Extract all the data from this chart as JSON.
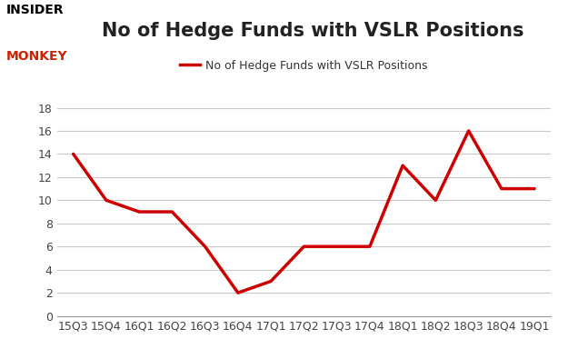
{
  "x_labels": [
    "15Q3",
    "15Q4",
    "16Q1",
    "16Q2",
    "16Q3",
    "16Q4",
    "17Q1",
    "17Q2",
    "17Q3",
    "17Q4",
    "18Q1",
    "18Q2",
    "18Q3",
    "18Q4",
    "19Q1"
  ],
  "y_values": [
    14,
    10,
    9,
    9,
    6,
    2,
    3,
    6,
    6,
    6,
    13,
    10,
    16,
    11,
    11
  ],
  "line_color": "#cc0000",
  "line_width": 2.5,
  "title": "No of Hedge Funds with VSLR Positions",
  "legend_label": "No of Hedge Funds with VSLR Positions",
  "ylim": [
    0,
    18
  ],
  "yticks": [
    0,
    2,
    4,
    6,
    8,
    10,
    12,
    14,
    16,
    18
  ],
  "background_color": "#ffffff",
  "plot_bg_color": "#ffffff",
  "grid_color": "#c8c8c8",
  "title_fontsize": 15,
  "axis_fontsize": 9,
  "legend_fontsize": 9,
  "insider_text": "INSIDER",
  "monkey_text": "MONKEY"
}
